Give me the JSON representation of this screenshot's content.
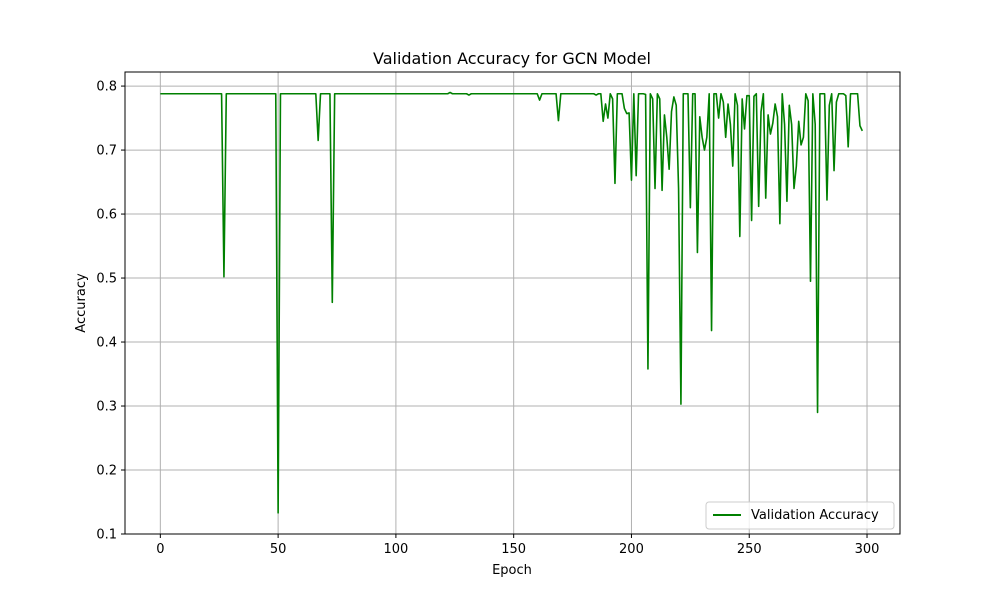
{
  "chart_data": {
    "type": "line",
    "title": "Validation Accuracy for GCN Model",
    "xlabel": "Epoch",
    "ylabel": "Accuracy",
    "xlim": [
      -15,
      314
    ],
    "ylim": [
      0.1,
      0.822
    ],
    "xticks": [
      0,
      50,
      100,
      150,
      200,
      250,
      300
    ],
    "yticks": [
      0.1,
      0.2,
      0.3,
      0.4,
      0.5,
      0.6,
      0.7,
      0.8
    ],
    "grid": true,
    "legend_position": "lower-right",
    "series": [
      {
        "name": "Validation Accuracy",
        "color": "#008000",
        "x": [
          0,
          26,
          27,
          28,
          49,
          50,
          51,
          66,
          67,
          68,
          72,
          73,
          74,
          122,
          123,
          124,
          130,
          131,
          132,
          160,
          161,
          162,
          168,
          169,
          170,
          184,
          185,
          186,
          187,
          188,
          189,
          190,
          191,
          192,
          193,
          194,
          195,
          196,
          197,
          198,
          199,
          200,
          201,
          202,
          203,
          204,
          205,
          206,
          207,
          208,
          209,
          210,
          211,
          212,
          213,
          214,
          215,
          216,
          217,
          218,
          219,
          220,
          221,
          222,
          223,
          224,
          225,
          226,
          227,
          228,
          229,
          230,
          231,
          232,
          233,
          234,
          235,
          236,
          237,
          238,
          239,
          240,
          241,
          242,
          243,
          244,
          245,
          246,
          247,
          248,
          249,
          250,
          251,
          252,
          253,
          254,
          255,
          256,
          257,
          258,
          259,
          260,
          261,
          262,
          263,
          264,
          265,
          266,
          267,
          268,
          269,
          270,
          271,
          272,
          273,
          274,
          275,
          276,
          277,
          278,
          279,
          280,
          281,
          282,
          283,
          284,
          285,
          286,
          287,
          288,
          289,
          290,
          291,
          292,
          293,
          294,
          295,
          296,
          297,
          298
        ],
        "y": [
          0.788,
          0.788,
          0.502,
          0.788,
          0.788,
          0.133,
          0.788,
          0.788,
          0.715,
          0.788,
          0.788,
          0.462,
          0.788,
          0.788,
          0.79,
          0.788,
          0.788,
          0.786,
          0.788,
          0.788,
          0.778,
          0.788,
          0.788,
          0.746,
          0.788,
          0.788,
          0.786,
          0.788,
          0.788,
          0.745,
          0.772,
          0.75,
          0.788,
          0.78,
          0.648,
          0.788,
          0.788,
          0.788,
          0.765,
          0.757,
          0.758,
          0.653,
          0.788,
          0.66,
          0.788,
          0.788,
          0.788,
          0.787,
          0.358,
          0.788,
          0.78,
          0.64,
          0.788,
          0.78,
          0.637,
          0.755,
          0.72,
          0.67,
          0.76,
          0.783,
          0.77,
          0.64,
          0.303,
          0.788,
          0.788,
          0.788,
          0.61,
          0.788,
          0.788,
          0.54,
          0.752,
          0.72,
          0.7,
          0.72,
          0.788,
          0.418,
          0.788,
          0.788,
          0.75,
          0.788,
          0.775,
          0.72,
          0.772,
          0.74,
          0.675,
          0.788,
          0.77,
          0.565,
          0.78,
          0.733,
          0.785,
          0.785,
          0.59,
          0.784,
          0.788,
          0.612,
          0.76,
          0.788,
          0.625,
          0.755,
          0.725,
          0.742,
          0.772,
          0.752,
          0.585,
          0.788,
          0.74,
          0.62,
          0.77,
          0.74,
          0.64,
          0.675,
          0.745,
          0.708,
          0.72,
          0.788,
          0.777,
          0.495,
          0.788,
          0.74,
          0.29,
          0.788,
          0.788,
          0.788,
          0.622,
          0.77,
          0.788,
          0.668,
          0.775,
          0.788,
          0.788,
          0.788,
          0.785,
          0.705,
          0.788,
          0.788,
          0.788,
          0.788,
          0.738,
          0.73
        ]
      }
    ]
  }
}
